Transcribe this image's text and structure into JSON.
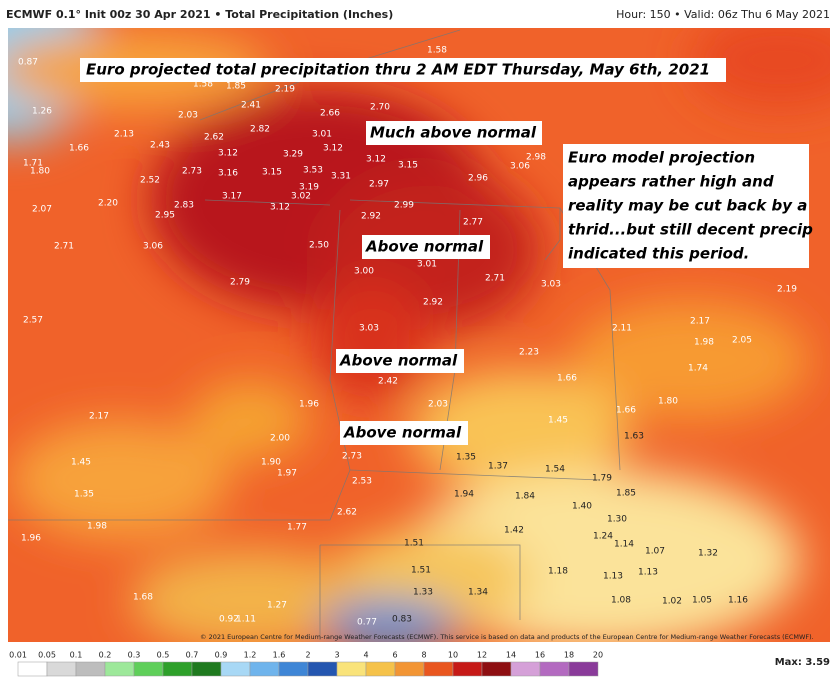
{
  "header": {
    "title": "ECMWF 0.1° Init 00z 30 Apr 2021 • Total Precipitation (Inches)",
    "valid": "Hour: 150 • Valid: 06z Thu 6 May 2021"
  },
  "annotations": {
    "headline": "Euro projected total precipitation thru 2 AM EDT Thursday, May 6th, 2021",
    "much_above": "Much above normal",
    "above_1": "Above normal",
    "above_2": "Above normal",
    "above_3": "Above normal",
    "note": [
      "Euro model projection",
      "appears rather high and",
      "reality may be cut back by a",
      "thrid...but still decent precip",
      "indicated this period."
    ]
  },
  "map": {
    "labels": [
      "0.87",
      "1.58",
      "1.58",
      "1.85",
      "2.19",
      "1.26",
      "2.03",
      "2.41",
      "2.66",
      "2.70",
      "2.13",
      "2.43",
      "2.62",
      "2.82",
      "3.01",
      "1.66",
      "3.12",
      "3.29",
      "3.12",
      "1.71",
      "1.80",
      "2.52",
      "2.73",
      "3.16",
      "3.15",
      "3.53",
      "3.31",
      "3.12",
      "3.15",
      "2.97",
      "2.96",
      "3.06",
      "2.98",
      "3.19",
      "2.07",
      "2.20",
      "2.95",
      "2.83",
      "3.17",
      "3.02",
      "3.12",
      "2.92",
      "2.99",
      "2.77",
      "2.71",
      "3.06",
      "2.50",
      "3.00",
      "3.01",
      "2.71",
      "3.03",
      "2.79",
      "2.19",
      "2.92",
      "2.57",
      "3.03",
      "2.11",
      "2.17",
      "1.98",
      "2.05",
      "2.23",
      "1.74",
      "1.66",
      "2.42",
      "2.03",
      "1.96",
      "1.80",
      "1.66",
      "2.17",
      "1.45",
      "1.63",
      "2.00",
      "1.45",
      "1.90",
      "1.97",
      "2.73",
      "1.35",
      "1.37",
      "1.54",
      "1.79",
      "1.35",
      "2.53",
      "1.94",
      "1.84",
      "1.85",
      "1.40",
      "2.62",
      "1.98",
      "1.77",
      "1.42",
      "1.30",
      "1.24",
      "1.14",
      "1.96",
      "1.51",
      "1.07",
      "1.32",
      "1.51",
      "1.18",
      "1.13",
      "1.13",
      "1.33",
      "1.34",
      "1.68",
      "1.27",
      "1.08",
      "1.02",
      "1.05",
      "1.16",
      "0.92",
      "1.11",
      "0.77",
      "0.83"
    ],
    "copyright": "© 2021 European Centre for Medium-range Weather Forecasts (ECMWF). This service is based on data and products of the European Centre for Medium-range Weather Forecasts (ECMWF)."
  },
  "colorbar": {
    "labels": [
      "0.01",
      "0.05",
      "0.1",
      "0.2",
      "0.3",
      "0.5",
      "0.7",
      "0.9",
      "1.2",
      "1.6",
      "2",
      "3",
      "4",
      "6",
      "8",
      "10",
      "12",
      "14",
      "16",
      "18",
      "20"
    ],
    "max": "Max: 3.59"
  }
}
